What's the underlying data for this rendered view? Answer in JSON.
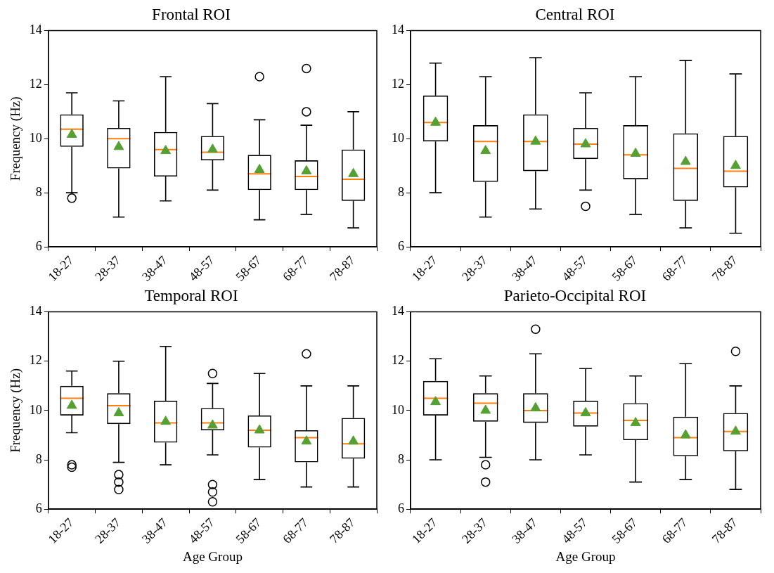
{
  "chart_data": [
    {
      "type": "box",
      "title": "Frontal ROI",
      "ylabel": "Frequency (Hz)",
      "categories": [
        "18-27",
        "28-37",
        "38-47",
        "48-57",
        "58-67",
        "68-77",
        "78-87"
      ],
      "ylim": [
        6,
        14
      ],
      "yticks": [
        6,
        8,
        10,
        12,
        14
      ],
      "boxes": [
        {
          "low": 8.0,
          "q1": 9.7,
          "median": 10.35,
          "q3": 10.9,
          "high": 11.7,
          "mean": 10.15,
          "outliers": [
            7.8
          ]
        },
        {
          "low": 7.1,
          "q1": 8.9,
          "median": 10.0,
          "q3": 10.4,
          "high": 11.4,
          "mean": 9.7
        },
        {
          "low": 7.7,
          "q1": 8.6,
          "median": 9.6,
          "q3": 10.25,
          "high": 12.3,
          "mean": 9.55
        },
        {
          "low": 8.1,
          "q1": 9.2,
          "median": 9.5,
          "q3": 10.1,
          "high": 11.3,
          "mean": 9.6
        },
        {
          "low": 7.0,
          "q1": 8.1,
          "median": 8.7,
          "q3": 9.4,
          "high": 10.7,
          "mean": 8.85,
          "outliers": [
            12.3
          ]
        },
        {
          "low": 7.2,
          "q1": 8.1,
          "median": 8.6,
          "q3": 9.2,
          "high": 10.5,
          "mean": 8.8,
          "outliers": [
            11.0,
            12.6
          ]
        },
        {
          "low": 6.7,
          "q1": 7.7,
          "median": 8.5,
          "q3": 9.6,
          "high": 11.0,
          "mean": 8.7
        }
      ]
    },
    {
      "type": "box",
      "title": "Central ROI",
      "categories": [
        "18-27",
        "28-37",
        "38-47",
        "48-57",
        "58-67",
        "68-77",
        "78-87"
      ],
      "ylim": [
        6,
        14
      ],
      "yticks": [
        6,
        8,
        10,
        12,
        14
      ],
      "boxes": [
        {
          "low": 8.0,
          "q1": 9.9,
          "median": 10.6,
          "q3": 11.6,
          "high": 12.8,
          "mean": 10.6
        },
        {
          "low": 7.1,
          "q1": 8.4,
          "median": 9.9,
          "q3": 10.5,
          "high": 12.3,
          "mean": 9.55
        },
        {
          "low": 7.4,
          "q1": 8.8,
          "median": 9.9,
          "q3": 10.9,
          "high": 13.0,
          "mean": 9.9
        },
        {
          "low": 8.1,
          "q1": 9.25,
          "median": 9.8,
          "q3": 10.4,
          "high": 11.7,
          "mean": 9.8,
          "outliers": [
            7.5
          ]
        },
        {
          "low": 7.2,
          "q1": 8.5,
          "median": 9.4,
          "q3": 10.5,
          "high": 12.3,
          "mean": 9.45
        },
        {
          "low": 6.7,
          "q1": 7.7,
          "median": 8.9,
          "q3": 10.2,
          "high": 12.9,
          "mean": 9.15
        },
        {
          "low": 6.5,
          "q1": 8.2,
          "median": 8.8,
          "q3": 10.1,
          "high": 12.4,
          "mean": 9.0
        }
      ]
    },
    {
      "type": "box",
      "title": "Temporal ROI",
      "xlabel": "Age Group",
      "ylabel": "Frequency (Hz)",
      "categories": [
        "18-27",
        "28-37",
        "38-47",
        "48-57",
        "58-67",
        "68-77",
        "78-87"
      ],
      "ylim": [
        6,
        14
      ],
      "yticks": [
        6,
        8,
        10,
        12,
        14
      ],
      "boxes": [
        {
          "low": 9.1,
          "q1": 9.8,
          "median": 10.5,
          "q3": 11.0,
          "high": 11.6,
          "mean": 10.2,
          "outliers": [
            7.7,
            7.8
          ]
        },
        {
          "low": 7.9,
          "q1": 9.45,
          "median": 10.2,
          "q3": 10.7,
          "high": 12.0,
          "mean": 9.9,
          "outliers": [
            6.8,
            7.1,
            7.4
          ]
        },
        {
          "low": 7.8,
          "q1": 8.7,
          "median": 9.5,
          "q3": 10.4,
          "high": 12.6,
          "mean": 9.55
        },
        {
          "low": 8.2,
          "q1": 9.2,
          "median": 9.5,
          "q3": 10.1,
          "high": 11.1,
          "mean": 9.4,
          "outliers": [
            6.3,
            6.7,
            7.0,
            11.5
          ]
        },
        {
          "low": 7.2,
          "q1": 8.5,
          "median": 9.2,
          "q3": 9.8,
          "high": 11.5,
          "mean": 9.2
        },
        {
          "low": 6.9,
          "q1": 7.9,
          "median": 8.9,
          "q3": 9.2,
          "high": 11.0,
          "mean": 8.75,
          "outliers": [
            12.3
          ]
        },
        {
          "low": 6.9,
          "q1": 8.05,
          "median": 8.65,
          "q3": 9.7,
          "high": 11.0,
          "mean": 8.75
        }
      ]
    },
    {
      "type": "box",
      "title": "Parieto-Occipital ROI",
      "xlabel": "Age Group",
      "categories": [
        "18-27",
        "28-37",
        "38-47",
        "48-57",
        "58-67",
        "68-77",
        "78-87"
      ],
      "ylim": [
        6,
        14
      ],
      "yticks": [
        6,
        8,
        10,
        12,
        14
      ],
      "boxes": [
        {
          "low": 8.0,
          "q1": 9.8,
          "median": 10.5,
          "q3": 11.2,
          "high": 12.1,
          "mean": 10.35
        },
        {
          "low": 8.1,
          "q1": 9.55,
          "median": 10.3,
          "q3": 10.7,
          "high": 11.4,
          "mean": 10.0,
          "outliers": [
            7.1,
            7.8
          ]
        },
        {
          "low": 8.0,
          "q1": 9.5,
          "median": 10.0,
          "q3": 10.7,
          "high": 12.3,
          "mean": 10.1,
          "outliers": [
            13.3
          ]
        },
        {
          "low": 8.2,
          "q1": 9.35,
          "median": 9.9,
          "q3": 10.4,
          "high": 11.7,
          "mean": 9.9
        },
        {
          "low": 7.1,
          "q1": 8.8,
          "median": 9.6,
          "q3": 10.3,
          "high": 11.4,
          "mean": 9.5
        },
        {
          "low": 7.2,
          "q1": 8.15,
          "median": 8.9,
          "q3": 9.75,
          "high": 11.9,
          "mean": 9.0
        },
        {
          "low": 6.8,
          "q1": 8.35,
          "median": 9.15,
          "q3": 9.9,
          "high": 11.0,
          "mean": 9.15,
          "outliers": [
            12.4
          ]
        }
      ]
    }
  ]
}
